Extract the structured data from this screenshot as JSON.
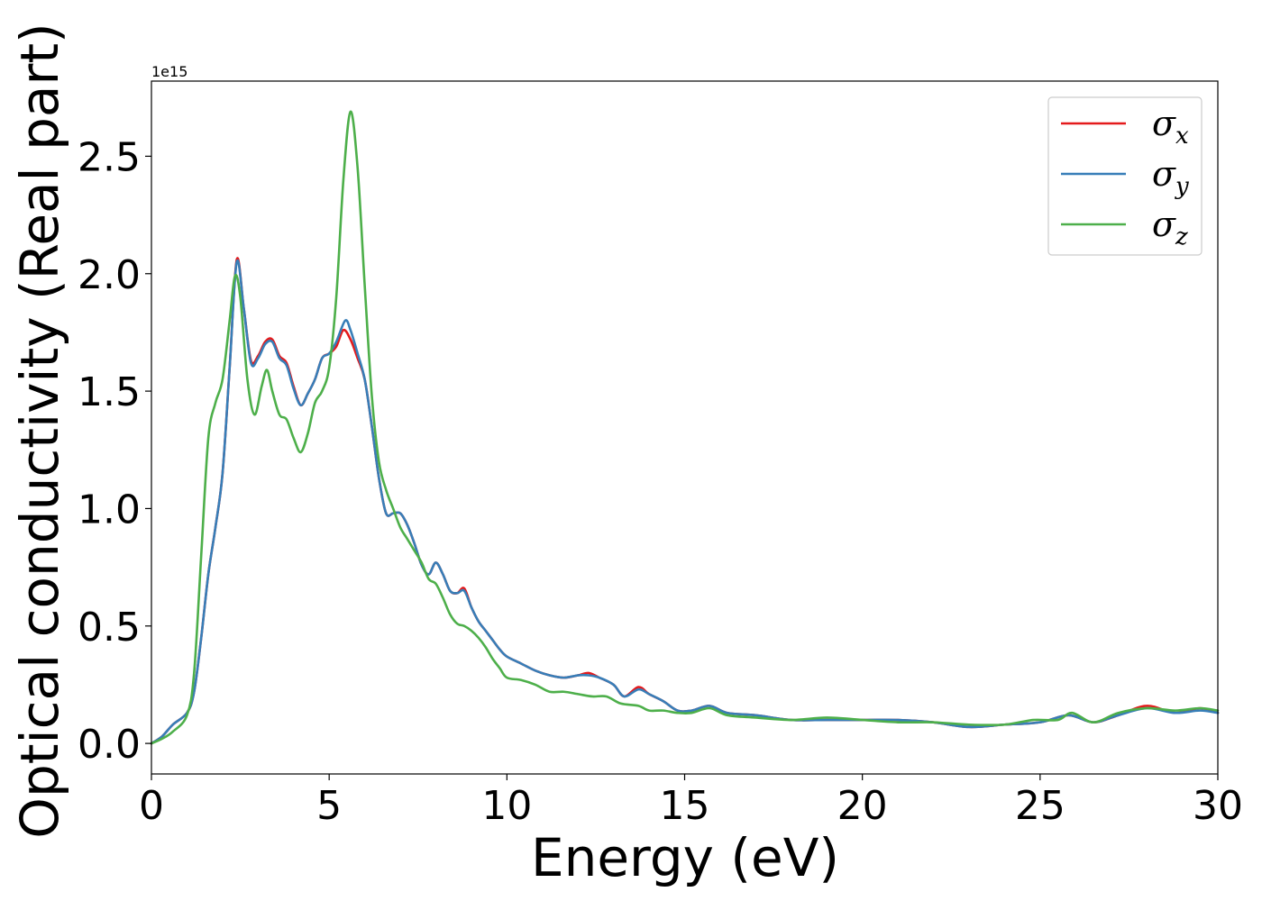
{
  "chart_data": {
    "type": "line",
    "title": "",
    "xlabel": "Energy (eV)",
    "ylabel": "Optical conductivity (Real part)",
    "y_offset_label": "1e15",
    "xlim": [
      0,
      30
    ],
    "ylim": [
      -0.13,
      2.82
    ],
    "x_ticks": [
      0,
      5,
      10,
      15,
      20,
      25,
      30
    ],
    "x_tick_labels": [
      "0",
      "5",
      "10",
      "15",
      "20",
      "25",
      "30"
    ],
    "y_ticks": [
      0.0,
      0.5,
      1.0,
      1.5,
      2.0,
      2.5
    ],
    "y_tick_labels": [
      "0.0",
      "0.5",
      "1.0",
      "1.5",
      "2.0",
      "2.5"
    ],
    "grid": false,
    "legend_position": "top-right",
    "series": [
      {
        "name": "σx",
        "label_symbol": "σ",
        "label_sub": "x",
        "color": "#e41a1c",
        "points": [
          [
            0,
            0
          ],
          [
            0.3,
            0.03
          ],
          [
            0.6,
            0.08
          ],
          [
            1.0,
            0.13
          ],
          [
            1.2,
            0.22
          ],
          [
            1.4,
            0.45
          ],
          [
            1.6,
            0.72
          ],
          [
            1.8,
            0.92
          ],
          [
            2.0,
            1.15
          ],
          [
            2.2,
            1.6
          ],
          [
            2.4,
            2.06
          ],
          [
            2.6,
            1.85
          ],
          [
            2.8,
            1.63
          ],
          [
            3.0,
            1.65
          ],
          [
            3.2,
            1.71
          ],
          [
            3.4,
            1.72
          ],
          [
            3.6,
            1.65
          ],
          [
            3.8,
            1.62
          ],
          [
            4.0,
            1.52
          ],
          [
            4.2,
            1.44
          ],
          [
            4.4,
            1.49
          ],
          [
            4.6,
            1.55
          ],
          [
            4.8,
            1.64
          ],
          [
            5.0,
            1.66
          ],
          [
            5.2,
            1.69
          ],
          [
            5.4,
            1.76
          ],
          [
            5.6,
            1.72
          ],
          [
            5.8,
            1.64
          ],
          [
            6.0,
            1.55
          ],
          [
            6.2,
            1.35
          ],
          [
            6.4,
            1.13
          ],
          [
            6.6,
            0.98
          ],
          [
            6.8,
            0.98
          ],
          [
            7.0,
            0.98
          ],
          [
            7.2,
            0.93
          ],
          [
            7.4,
            0.85
          ],
          [
            7.6,
            0.76
          ],
          [
            7.8,
            0.72
          ],
          [
            8.0,
            0.77
          ],
          [
            8.2,
            0.72
          ],
          [
            8.4,
            0.65
          ],
          [
            8.6,
            0.64
          ],
          [
            8.8,
            0.66
          ],
          [
            9.0,
            0.58
          ],
          [
            9.2,
            0.52
          ],
          [
            9.4,
            0.48
          ],
          [
            9.6,
            0.44
          ],
          [
            9.8,
            0.4
          ],
          [
            10.0,
            0.37
          ],
          [
            10.4,
            0.34
          ],
          [
            10.8,
            0.31
          ],
          [
            11.2,
            0.29
          ],
          [
            11.6,
            0.28
          ],
          [
            12.0,
            0.29
          ],
          [
            12.3,
            0.3
          ],
          [
            12.6,
            0.28
          ],
          [
            13.0,
            0.25
          ],
          [
            13.3,
            0.2
          ],
          [
            13.7,
            0.24
          ],
          [
            14.0,
            0.21
          ],
          [
            14.4,
            0.18
          ],
          [
            14.8,
            0.14
          ],
          [
            15.2,
            0.14
          ],
          [
            15.7,
            0.16
          ],
          [
            16.2,
            0.13
          ],
          [
            17.0,
            0.12
          ],
          [
            18.0,
            0.1
          ],
          [
            19.0,
            0.1
          ],
          [
            20.0,
            0.1
          ],
          [
            21.0,
            0.1
          ],
          [
            22.0,
            0.09
          ],
          [
            23.0,
            0.07
          ],
          [
            24.0,
            0.08
          ],
          [
            25.0,
            0.09
          ],
          [
            25.8,
            0.12
          ],
          [
            26.5,
            0.09
          ],
          [
            27.2,
            0.12
          ],
          [
            28.0,
            0.16
          ],
          [
            28.8,
            0.13
          ],
          [
            29.5,
            0.15
          ],
          [
            30.0,
            0.13
          ]
        ]
      },
      {
        "name": "σy",
        "label_symbol": "σ",
        "label_sub": "y",
        "color": "#377eb8",
        "points": [
          [
            0,
            0
          ],
          [
            0.3,
            0.03
          ],
          [
            0.6,
            0.08
          ],
          [
            1.0,
            0.13
          ],
          [
            1.2,
            0.22
          ],
          [
            1.4,
            0.45
          ],
          [
            1.6,
            0.72
          ],
          [
            1.8,
            0.92
          ],
          [
            2.0,
            1.15
          ],
          [
            2.2,
            1.6
          ],
          [
            2.4,
            2.05
          ],
          [
            2.6,
            1.85
          ],
          [
            2.8,
            1.62
          ],
          [
            3.0,
            1.64
          ],
          [
            3.2,
            1.7
          ],
          [
            3.4,
            1.71
          ],
          [
            3.6,
            1.64
          ],
          [
            3.8,
            1.61
          ],
          [
            4.0,
            1.51
          ],
          [
            4.2,
            1.44
          ],
          [
            4.4,
            1.49
          ],
          [
            4.6,
            1.55
          ],
          [
            4.8,
            1.64
          ],
          [
            5.0,
            1.66
          ],
          [
            5.2,
            1.71
          ],
          [
            5.45,
            1.8
          ],
          [
            5.6,
            1.76
          ],
          [
            5.8,
            1.66
          ],
          [
            6.0,
            1.55
          ],
          [
            6.2,
            1.35
          ],
          [
            6.4,
            1.13
          ],
          [
            6.6,
            0.98
          ],
          [
            6.8,
            0.98
          ],
          [
            7.0,
            0.98
          ],
          [
            7.2,
            0.93
          ],
          [
            7.4,
            0.85
          ],
          [
            7.6,
            0.76
          ],
          [
            7.8,
            0.72
          ],
          [
            8.0,
            0.77
          ],
          [
            8.2,
            0.72
          ],
          [
            8.4,
            0.65
          ],
          [
            8.6,
            0.64
          ],
          [
            8.8,
            0.65
          ],
          [
            9.0,
            0.58
          ],
          [
            9.2,
            0.52
          ],
          [
            9.4,
            0.48
          ],
          [
            9.6,
            0.44
          ],
          [
            9.8,
            0.4
          ],
          [
            10.0,
            0.37
          ],
          [
            10.4,
            0.34
          ],
          [
            10.8,
            0.31
          ],
          [
            11.2,
            0.29
          ],
          [
            11.6,
            0.28
          ],
          [
            12.0,
            0.29
          ],
          [
            12.3,
            0.29
          ],
          [
            12.6,
            0.28
          ],
          [
            13.0,
            0.25
          ],
          [
            13.3,
            0.2
          ],
          [
            13.7,
            0.23
          ],
          [
            14.0,
            0.21
          ],
          [
            14.4,
            0.18
          ],
          [
            14.8,
            0.14
          ],
          [
            15.2,
            0.14
          ],
          [
            15.7,
            0.16
          ],
          [
            16.2,
            0.13
          ],
          [
            17.0,
            0.12
          ],
          [
            18.0,
            0.1
          ],
          [
            19.0,
            0.1
          ],
          [
            20.0,
            0.1
          ],
          [
            21.0,
            0.1
          ],
          [
            22.0,
            0.09
          ],
          [
            23.0,
            0.07
          ],
          [
            24.0,
            0.08
          ],
          [
            25.0,
            0.09
          ],
          [
            25.8,
            0.12
          ],
          [
            26.5,
            0.09
          ],
          [
            27.2,
            0.12
          ],
          [
            28.0,
            0.15
          ],
          [
            28.8,
            0.13
          ],
          [
            29.5,
            0.14
          ],
          [
            30.0,
            0.13
          ]
        ]
      },
      {
        "name": "σz",
        "label_symbol": "σ",
        "label_sub": "z",
        "color": "#4daf4a",
        "points": [
          [
            0,
            0
          ],
          [
            0.3,
            0.02
          ],
          [
            0.6,
            0.05
          ],
          [
            1.0,
            0.12
          ],
          [
            1.2,
            0.3
          ],
          [
            1.4,
            0.8
          ],
          [
            1.6,
            1.3
          ],
          [
            1.8,
            1.45
          ],
          [
            2.0,
            1.55
          ],
          [
            2.2,
            1.8
          ],
          [
            2.35,
            1.99
          ],
          [
            2.5,
            1.9
          ],
          [
            2.7,
            1.55
          ],
          [
            2.9,
            1.4
          ],
          [
            3.1,
            1.52
          ],
          [
            3.25,
            1.59
          ],
          [
            3.4,
            1.5
          ],
          [
            3.6,
            1.4
          ],
          [
            3.8,
            1.38
          ],
          [
            4.0,
            1.3
          ],
          [
            4.2,
            1.24
          ],
          [
            4.4,
            1.32
          ],
          [
            4.6,
            1.45
          ],
          [
            4.8,
            1.5
          ],
          [
            5.0,
            1.6
          ],
          [
            5.2,
            1.9
          ],
          [
            5.4,
            2.4
          ],
          [
            5.6,
            2.69
          ],
          [
            5.8,
            2.45
          ],
          [
            6.0,
            1.95
          ],
          [
            6.2,
            1.48
          ],
          [
            6.4,
            1.2
          ],
          [
            6.6,
            1.08
          ],
          [
            6.8,
            1.0
          ],
          [
            7.0,
            0.92
          ],
          [
            7.2,
            0.87
          ],
          [
            7.4,
            0.82
          ],
          [
            7.6,
            0.77
          ],
          [
            7.8,
            0.7
          ],
          [
            8.0,
            0.68
          ],
          [
            8.2,
            0.62
          ],
          [
            8.4,
            0.55
          ],
          [
            8.6,
            0.51
          ],
          [
            8.8,
            0.5
          ],
          [
            9.0,
            0.48
          ],
          [
            9.2,
            0.45
          ],
          [
            9.4,
            0.41
          ],
          [
            9.6,
            0.36
          ],
          [
            9.8,
            0.32
          ],
          [
            10.0,
            0.28
          ],
          [
            10.4,
            0.27
          ],
          [
            10.8,
            0.25
          ],
          [
            11.2,
            0.22
          ],
          [
            11.6,
            0.22
          ],
          [
            12.0,
            0.21
          ],
          [
            12.4,
            0.2
          ],
          [
            12.8,
            0.2
          ],
          [
            13.2,
            0.17
          ],
          [
            13.7,
            0.16
          ],
          [
            14.0,
            0.14
          ],
          [
            14.4,
            0.14
          ],
          [
            14.8,
            0.13
          ],
          [
            15.2,
            0.13
          ],
          [
            15.7,
            0.15
          ],
          [
            16.2,
            0.12
          ],
          [
            17.0,
            0.11
          ],
          [
            18.0,
            0.1
          ],
          [
            19.0,
            0.11
          ],
          [
            20.0,
            0.1
          ],
          [
            21.0,
            0.09
          ],
          [
            22.0,
            0.09
          ],
          [
            23.0,
            0.08
          ],
          [
            24.0,
            0.08
          ],
          [
            24.8,
            0.1
          ],
          [
            25.5,
            0.1
          ],
          [
            25.9,
            0.13
          ],
          [
            26.5,
            0.09
          ],
          [
            27.2,
            0.13
          ],
          [
            28.0,
            0.15
          ],
          [
            28.8,
            0.14
          ],
          [
            29.5,
            0.15
          ],
          [
            30.0,
            0.14
          ]
        ]
      }
    ]
  }
}
